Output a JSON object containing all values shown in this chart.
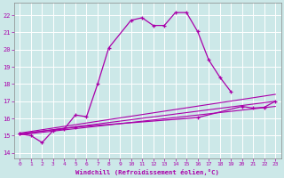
{
  "xlabel": "Windchill (Refroidissement éolien,°C)",
  "xlim": [
    -0.5,
    23.5
  ],
  "ylim": [
    13.7,
    22.7
  ],
  "yticks": [
    14,
    15,
    16,
    17,
    18,
    19,
    20,
    21,
    22
  ],
  "xticks": [
    0,
    1,
    2,
    3,
    4,
    5,
    6,
    7,
    8,
    9,
    10,
    11,
    12,
    13,
    14,
    15,
    16,
    17,
    18,
    19,
    20,
    21,
    22,
    23
  ],
  "bg_color": "#cce8e8",
  "line_color": "#aa00aa",
  "grid_color": "#ffffff",
  "lines": [
    {
      "x": [
        0,
        1,
        2,
        3,
        4,
        5,
        6,
        7,
        8,
        10,
        11,
        12,
        13,
        14,
        15,
        16,
        17,
        18,
        19
      ],
      "y": [
        15.1,
        15.0,
        14.6,
        15.3,
        15.4,
        16.2,
        16.1,
        18.0,
        20.1,
        21.7,
        21.85,
        21.4,
        21.4,
        22.15,
        22.15,
        21.05,
        19.4,
        18.4,
        17.55
      ]
    },
    {
      "x": [
        0,
        5,
        16,
        20,
        21,
        22,
        23
      ],
      "y": [
        15.1,
        15.5,
        16.05,
        16.7,
        16.6,
        16.65,
        17.0
      ]
    },
    {
      "x": [
        0,
        23
      ],
      "y": [
        15.05,
        16.7
      ]
    },
    {
      "x": [
        0,
        23
      ],
      "y": [
        15.1,
        17.0
      ]
    },
    {
      "x": [
        0,
        23
      ],
      "y": [
        15.15,
        17.4
      ]
    }
  ],
  "markers": [
    {
      "x": [
        0,
        1,
        2,
        3,
        4,
        5,
        6,
        7,
        8,
        10,
        11,
        12,
        13,
        14,
        15,
        16,
        17,
        18,
        19
      ],
      "y": [
        15.1,
        15.0,
        14.6,
        15.3,
        15.4,
        16.2,
        16.1,
        18.0,
        20.1,
        21.7,
        21.85,
        21.4,
        21.4,
        22.15,
        22.15,
        21.05,
        19.4,
        18.4,
        17.55
      ]
    },
    {
      "x": [
        0,
        5,
        16,
        20,
        21,
        22,
        23
      ],
      "y": [
        15.1,
        15.5,
        16.05,
        16.7,
        16.6,
        16.65,
        17.0
      ]
    }
  ]
}
